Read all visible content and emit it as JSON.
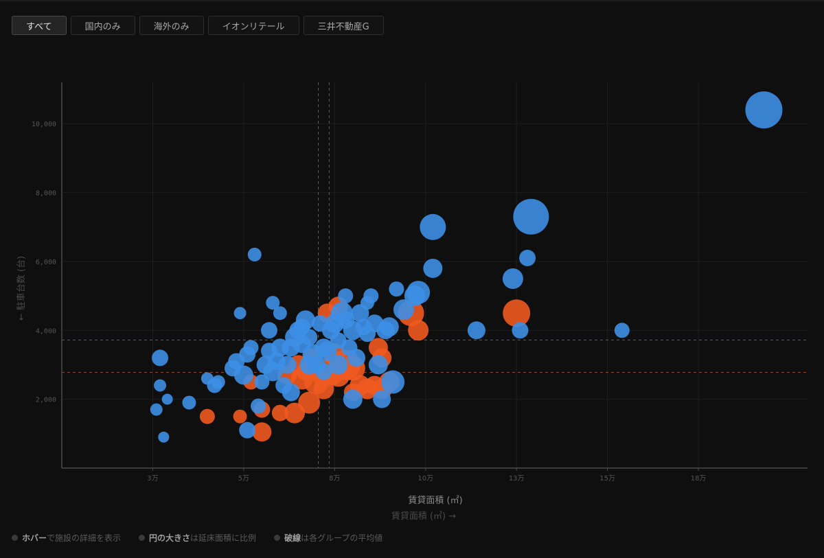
{
  "filters": [
    {
      "label": "すべて",
      "active": true
    },
    {
      "label": "国内のみ",
      "active": false
    },
    {
      "label": "海外のみ",
      "active": false
    },
    {
      "label": "イオンリテール",
      "active": false
    },
    {
      "label": "三井不動産G",
      "active": false
    }
  ],
  "colors": {
    "blue": "#3d8fe6",
    "orange": "#f05a20",
    "grid": "#1e1e1e",
    "axis": "#4a4a4a"
  },
  "chart_data": {
    "type": "scatter",
    "xlabel": "賃貸面積 (㎡)",
    "xlabel2": "賃貸面積 (㎡) →",
    "ylabel": "← 駐車台数 (台)",
    "xlim": [
      0,
      205000
    ],
    "ylim": [
      0,
      11200
    ],
    "x_ticks": [
      {
        "value": 25000,
        "label": "3万"
      },
      {
        "value": 50000,
        "label": "5万"
      },
      {
        "value": 75000,
        "label": "8万"
      },
      {
        "value": 100000,
        "label": "10万"
      },
      {
        "value": 125000,
        "label": "13万"
      },
      {
        "value": 150000,
        "label": "15万"
      },
      {
        "value": 175000,
        "label": "18万"
      }
    ],
    "y_ticks": [
      {
        "value": 2000,
        "label": "2,000"
      },
      {
        "value": 4000,
        "label": "4,000"
      },
      {
        "value": 6000,
        "label": "6,000"
      },
      {
        "value": 8000,
        "label": "8,000"
      },
      {
        "value": 10000,
        "label": "10,000"
      }
    ],
    "mean_lines": [
      {
        "group": "blue",
        "x": 70500,
        "y": 3720
      },
      {
        "group": "orange",
        "x": 73500,
        "y": 2780
      }
    ],
    "series": [
      {
        "color": "#f05a20",
        "points": [
          [
            40000,
            1500,
            11
          ],
          [
            49000,
            1500,
            10
          ],
          [
            55000,
            1700,
            12
          ],
          [
            55000,
            1050,
            14
          ],
          [
            60000,
            1600,
            12
          ],
          [
            64000,
            1600,
            15
          ],
          [
            68000,
            1900,
            16
          ],
          [
            52000,
            2500,
            11
          ],
          [
            62000,
            2700,
            14
          ],
          [
            66000,
            2600,
            16
          ],
          [
            70000,
            2500,
            18
          ],
          [
            72000,
            2300,
            15
          ],
          [
            74000,
            2800,
            20
          ],
          [
            76000,
            2700,
            17
          ],
          [
            78000,
            3000,
            22
          ],
          [
            80000,
            2900,
            18
          ],
          [
            82000,
            2400,
            15
          ],
          [
            84000,
            2300,
            15
          ],
          [
            86000,
            2400,
            14
          ],
          [
            88000,
            2300,
            15
          ],
          [
            90000,
            2500,
            15
          ],
          [
            88000,
            3200,
            14
          ],
          [
            87000,
            3500,
            14
          ],
          [
            75000,
            3300,
            16
          ],
          [
            69000,
            3200,
            14
          ],
          [
            73000,
            4500,
            14
          ],
          [
            76000,
            4700,
            14
          ],
          [
            96000,
            4500,
            19
          ],
          [
            98000,
            4000,
            15
          ],
          [
            125000,
            4500,
            20
          ],
          [
            65000,
            3000,
            14
          ],
          [
            80000,
            2200,
            13
          ],
          [
            71000,
            2700,
            13
          ],
          [
            67000,
            2800,
            13
          ]
        ]
      },
      {
        "color": "#3d8fe6",
        "points": [
          [
            26000,
            1700,
            9
          ],
          [
            28000,
            900,
            8
          ],
          [
            29000,
            2000,
            8
          ],
          [
            27000,
            2400,
            9
          ],
          [
            27000,
            3200,
            12
          ],
          [
            35000,
            1900,
            10
          ],
          [
            40000,
            2600,
            9
          ],
          [
            42000,
            2400,
            11
          ],
          [
            43000,
            2500,
            10
          ],
          [
            47000,
            2900,
            12
          ],
          [
            48000,
            3100,
            12
          ],
          [
            49000,
            4500,
            9
          ],
          [
            50000,
            2700,
            14
          ],
          [
            51000,
            3300,
            12
          ],
          [
            52000,
            3500,
            11
          ],
          [
            51000,
            1100,
            12
          ],
          [
            54000,
            1800,
            11
          ],
          [
            53000,
            6200,
            10
          ],
          [
            55000,
            2500,
            11
          ],
          [
            56000,
            3000,
            13
          ],
          [
            57000,
            3400,
            12
          ],
          [
            58000,
            2800,
            14
          ],
          [
            57000,
            4000,
            12
          ],
          [
            58000,
            4800,
            10
          ],
          [
            60000,
            4500,
            10
          ],
          [
            60000,
            3500,
            13
          ],
          [
            61000,
            2400,
            12
          ],
          [
            62000,
            3000,
            13
          ],
          [
            63000,
            2200,
            13
          ],
          [
            64000,
            3800,
            14
          ],
          [
            65000,
            4000,
            13
          ],
          [
            66000,
            3600,
            13
          ],
          [
            67000,
            4300,
            14
          ],
          [
            68000,
            3800,
            12
          ],
          [
            69000,
            3300,
            15
          ],
          [
            70000,
            3000,
            13
          ],
          [
            71000,
            4200,
            12
          ],
          [
            72000,
            2800,
            12
          ],
          [
            73000,
            3400,
            14
          ],
          [
            74000,
            4000,
            13
          ],
          [
            75000,
            4200,
            14
          ],
          [
            76000,
            3700,
            12
          ],
          [
            77000,
            4500,
            16
          ],
          [
            78000,
            4300,
            13
          ],
          [
            78000,
            5000,
            11
          ],
          [
            79000,
            3500,
            12
          ],
          [
            80000,
            4000,
            14
          ],
          [
            81000,
            3200,
            13
          ],
          [
            82000,
            4500,
            13
          ],
          [
            83000,
            4100,
            12
          ],
          [
            84000,
            3900,
            12
          ],
          [
            84000,
            4800,
            10
          ],
          [
            85000,
            5000,
            11
          ],
          [
            86000,
            4200,
            13
          ],
          [
            87000,
            3000,
            14
          ],
          [
            89000,
            4000,
            13
          ],
          [
            90000,
            4100,
            14
          ],
          [
            92000,
            5200,
            11
          ],
          [
            94000,
            4600,
            15
          ],
          [
            97000,
            5000,
            15
          ],
          [
            98000,
            5100,
            17
          ],
          [
            102000,
            5800,
            14
          ],
          [
            102000,
            7000,
            19
          ],
          [
            88000,
            2000,
            13
          ],
          [
            80000,
            2000,
            14
          ],
          [
            91000,
            2500,
            17
          ],
          [
            114000,
            4000,
            13
          ],
          [
            124000,
            5500,
            15
          ],
          [
            128000,
            6100,
            12
          ],
          [
            126000,
            4000,
            12
          ],
          [
            129000,
            7300,
            26
          ],
          [
            154000,
            4000,
            11
          ],
          [
            193000,
            10400,
            27
          ],
          [
            76000,
            3000,
            14
          ],
          [
            68000,
            3000,
            14
          ],
          [
            63000,
            3500,
            13
          ],
          [
            59000,
            3100,
            13
          ],
          [
            66000,
            4100,
            12
          ],
          [
            72000,
            3500,
            13
          ]
        ]
      }
    ]
  },
  "legend": [
    {
      "bold": "ホバー",
      "text": "で施設の詳細を表示"
    },
    {
      "bold": "円の大きさ",
      "text": "は延床面積に比例"
    },
    {
      "bold": "破線",
      "text": "は各グループの平均値"
    }
  ]
}
